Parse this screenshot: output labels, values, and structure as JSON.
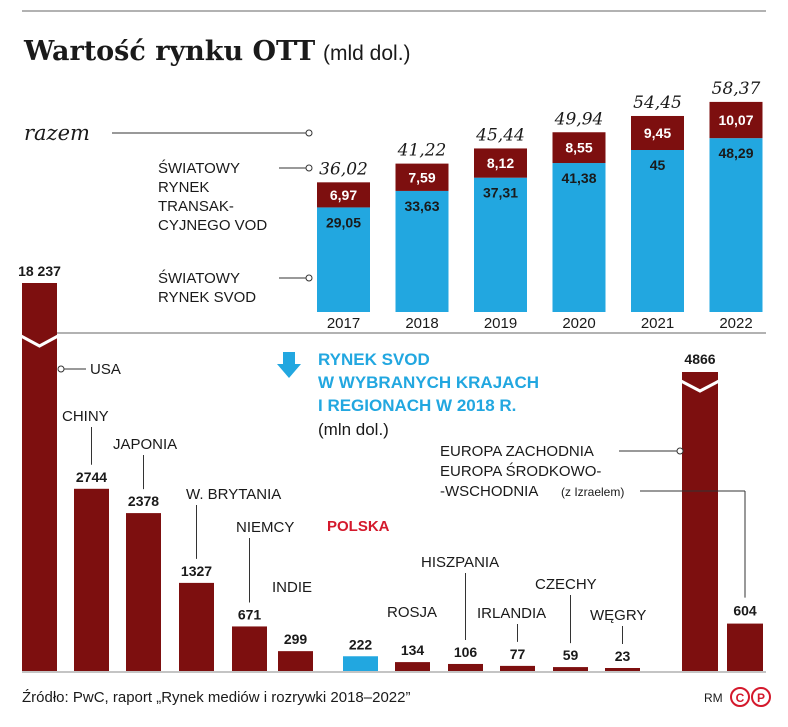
{
  "header": {
    "title": "Wartość rynku OTT",
    "unit": "(mld dol.)"
  },
  "colors": {
    "dark_red": "#7d0f0f",
    "blue": "#22a7e0",
    "highlight_red": "#d4192c",
    "axis": "#555555"
  },
  "top_labels": {
    "total": "razem",
    "transactional": [
      "ŚWIATOWY",
      "RYNEK",
      "TRANSAK-",
      "CYJNEGO VOD"
    ],
    "svod": [
      "ŚWIATOWY",
      "RYNEK SVOD"
    ]
  },
  "bottom_title": {
    "line1": "RYNEK SVOD",
    "line2": "W WYBRANYCH KRAJACH",
    "line3": "I REGIONACH W 2018 R.",
    "unit": "(mln dol.)"
  },
  "footer": {
    "source": "Źródło: PwC, raport „Rynek mediów i rozrywki 2018–2022”",
    "credit": "RM"
  },
  "chart_data": [
    {
      "type": "bar",
      "stacked": true,
      "title": "Wartość rynku OTT",
      "unit": "(mld dol.)",
      "categories": [
        "2017",
        "2018",
        "2019",
        "2020",
        "2021",
        "2022"
      ],
      "series": [
        {
          "name": "ŚWIATOWY RYNEK SVOD",
          "values": [
            29.05,
            33.63,
            37.31,
            41.38,
            45,
            48.29
          ]
        },
        {
          "name": "ŚWIATOWY RYNEK TRANSAKCYJNEGO VOD",
          "values": [
            6.97,
            7.59,
            8.12,
            8.55,
            9.45,
            10.07
          ]
        }
      ],
      "value_labels": {
        "svod": [
          "29,05",
          "33,63",
          "37,31",
          "41,38",
          "45",
          "48,29"
        ],
        "transactional": [
          "6,97",
          "7,59",
          "8,12",
          "8,55",
          "9,45",
          "10,07"
        ]
      },
      "totals": [
        36.02,
        41.22,
        45.44,
        49.94,
        54.45,
        58.37
      ],
      "total_labels": [
        "36,02",
        "41,22",
        "45,44",
        "49,94",
        "54,45",
        "58,37"
      ]
    },
    {
      "type": "bar",
      "title": "RYNEK SVOD W WYBRANYCH KRAJACH I REGIONACH W 2018 R.",
      "unit": "(mln dol.)",
      "categories": [
        "USA",
        "CHINY",
        "JAPONIA",
        "W. BRYTANIA",
        "NIEMCY",
        "INDIE",
        "POLSKA",
        "ROSJA",
        "HISZPANIA",
        "IRLANDIA",
        "CZECHY",
        "WĘGRY"
      ],
      "values": [
        18237,
        2744,
        2378,
        1327,
        671,
        299,
        222,
        134,
        106,
        77,
        59,
        23
      ],
      "value_labels": [
        "18 237",
        "2744",
        "2378",
        "1327",
        "671",
        "299",
        "222",
        "134",
        "106",
        "77",
        "59",
        "23"
      ],
      "highlight": "POLSKA",
      "broken_bars": [
        "USA"
      ]
    },
    {
      "type": "bar",
      "categories": [
        "EUROPA ZACHODNIA",
        "EUROPA ŚRODKOWO-WSCHODNIA (z Izraelem)"
      ],
      "category_lines": [
        [
          "EUROPA ZACHODNIA"
        ],
        [
          "EUROPA ŚRODKOWO-",
          "-WSCHODNIA"
        ]
      ],
      "category_note": "(z Izraelem)",
      "values": [
        4866,
        604
      ],
      "value_labels": [
        "4866",
        "604"
      ],
      "broken_bars": [
        "EUROPA ZACHODNIA"
      ]
    }
  ]
}
